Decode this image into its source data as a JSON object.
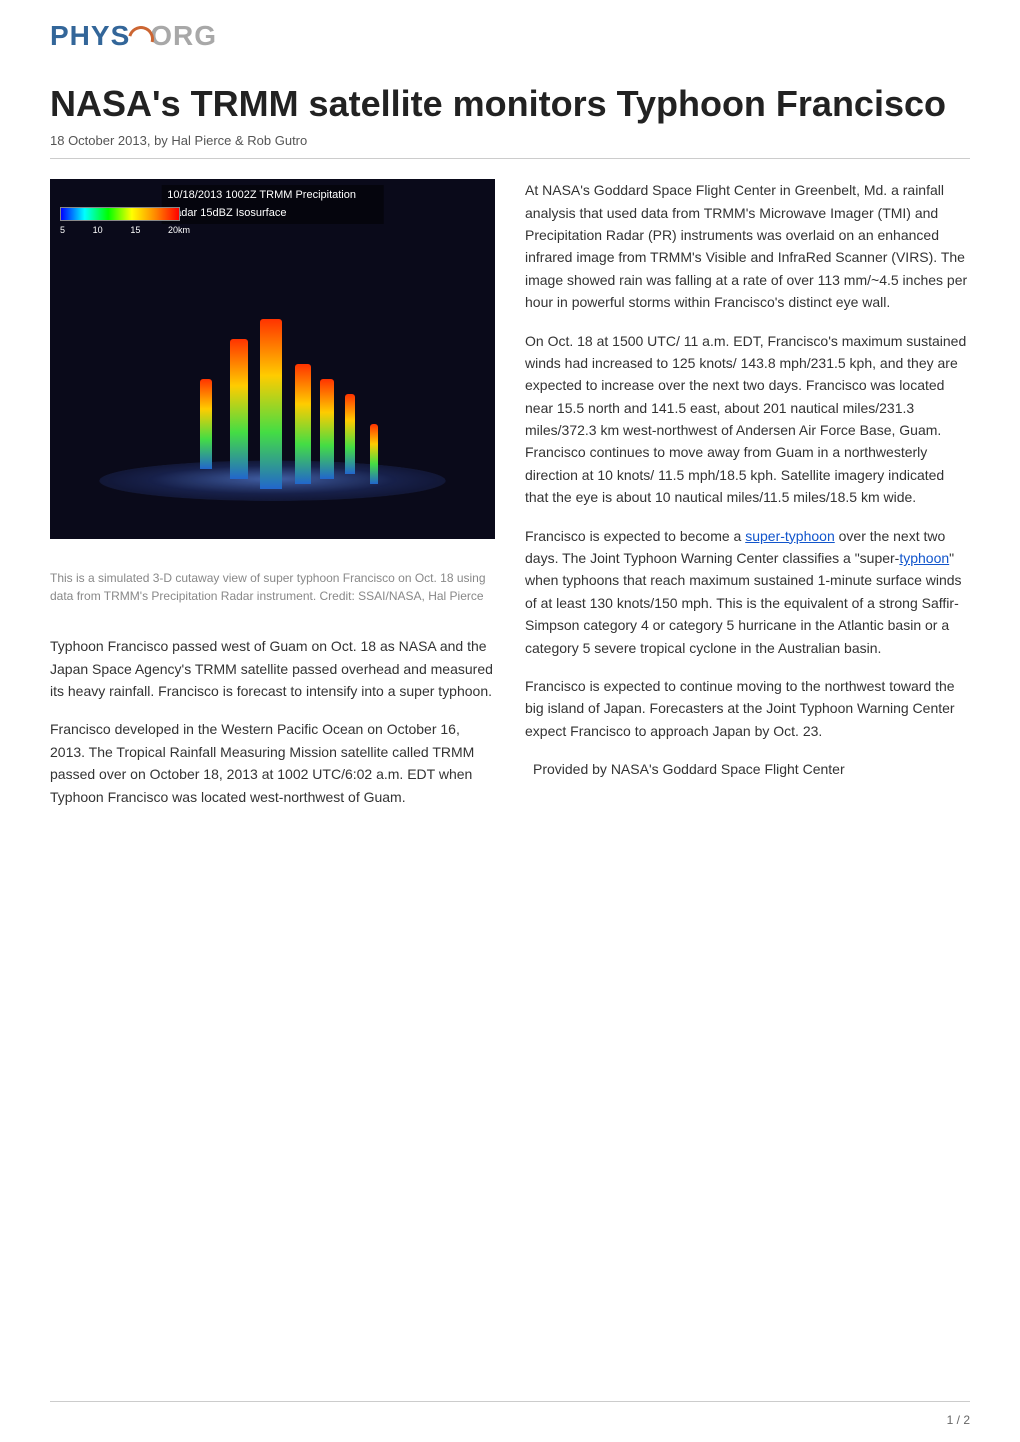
{
  "logo": {
    "phys": "PHYS",
    "org": "ORG"
  },
  "headline": "NASA's TRMM satellite monitors Typhoon Francisco",
  "byline": "18 October 2013, by Hal Pierce & Rob Gutro",
  "figure": {
    "title_bar": "10/18/2013 1002Z TRMM Precipitation Radar 15dBZ Isosurface",
    "scale_labels": [
      "5",
      "10",
      "15",
      "20km"
    ],
    "caption": "This is a simulated 3-D cutaway view of super typhoon Francisco on Oct. 18 using data from TRMM's Precipitation Radar instrument. Credit: SSAI/NASA, Hal Pierce",
    "colors": {
      "background": "#0a0a1a",
      "gradient_stops": [
        "#0000ff",
        "#00ffff",
        "#00ff00",
        "#ffff00",
        "#ff8800",
        "#ff0000"
      ]
    }
  },
  "paragraphs": {
    "p1": "Typhoon Francisco passed west of Guam on Oct. 18 as NASA and the Japan Space Agency's TRMM satellite passed overhead and measured its heavy rainfall. Francisco is forecast to intensify into a super typhoon.",
    "p2": "Francisco developed in the Western Pacific Ocean on October 16, 2013. The Tropical Rainfall Measuring Mission satellite called TRMM passed over on October 18, 2013 at 1002 UTC/6:02 a.m. EDT when Typhoon Francisco was located west-northwest of Guam.",
    "p3": "At NASA's Goddard Space Flight Center in Greenbelt, Md. a rainfall analysis that used data from TRMM's Microwave Imager (TMI) and Precipitation Radar (PR) instruments was overlaid on an enhanced infrared image from TRMM's Visible and InfraRed Scanner (VIRS). The image showed rain was falling at a rate of over 113 mm/~4.5 inches per hour in powerful storms within Francisco's distinct eye wall.",
    "p4": "On Oct. 18 at 1500 UTC/ 11 a.m. EDT, Francisco's maximum sustained winds had increased to 125 knots/ 143.8 mph/231.5 kph, and they are expected to increase over the next two days. Francisco was located near 15.5 north and 141.5 east, about 201 nautical miles/231.3 miles/372.3 km west-northwest of Andersen Air Force Base, Guam. Francisco continues to move away from Guam in a northwesterly direction at 10 knots/ 11.5 mph/18.5 kph. Satellite imagery indicated that the eye is about 10 nautical miles/11.5 miles/18.5 km wide.",
    "p5_pre": "Francisco is expected to become a ",
    "p5_link1": "super-typhoon",
    "p5_mid": " over the next two days. The Joint Typhoon Warning Center classifies a \"super-",
    "p5_link2": "typhoon",
    "p5_post": "\" when typhoons that reach maximum sustained 1-minute surface winds of at least 130 knots/150 mph. This is the equivalent of a strong Saffir-Simpson category 4 or category 5 hurricane in the Atlantic basin or a category 5 severe tropical cyclone in the Australian basin.",
    "p6": "Francisco is expected to continue moving to the northwest toward the big island of Japan. Forecasters at the Joint Typhoon Warning Center expect Francisco to approach Japan by Oct. 23.",
    "provided": "Provided by NASA's Goddard Space Flight Center"
  },
  "page_number": "1 / 2",
  "styling": {
    "body_width": 1020,
    "body_height": 1442,
    "headline_fontsize": 36,
    "headline_color": "#222222",
    "byline_fontsize": 13,
    "byline_color": "#555555",
    "body_fontsize": 14,
    "body_color": "#333333",
    "caption_fontsize": 12,
    "caption_color": "#888888",
    "link_color": "#1155cc",
    "logo_phys_color": "#336699",
    "logo_org_color": "#a8a8a8",
    "logo_swirl_color": "#cc6633",
    "divider_color": "#cccccc",
    "column_count": 2,
    "column_gap": 30
  }
}
